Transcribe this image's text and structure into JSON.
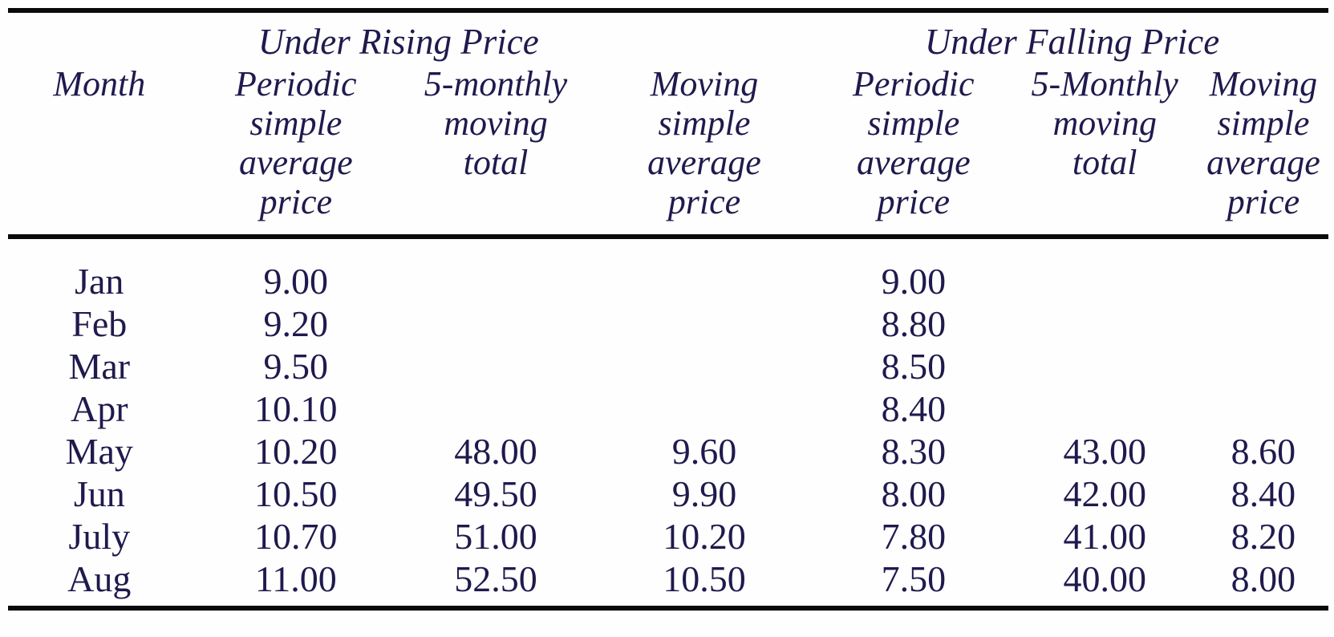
{
  "page": {
    "background_color": "#fefefe",
    "text_color": "#1f1a4d",
    "rule_color": "#0a0a0a"
  },
  "table": {
    "group_headers": {
      "rising": "Under Rising Price",
      "falling": "Under Falling Price"
    },
    "column_headers": [
      "Month",
      "Periodic\nsimple\naverage\nprice",
      "5-monthly\nmoving\ntotal",
      "Moving\nsimple\naverage\nprice",
      "Periodic\nsimple\naverage\nprice",
      "5-Monthly\nmoving\ntotal",
      "Moving\nsimple\naverage\nprice"
    ],
    "rows": [
      [
        "Jan",
        "9.00",
        "",
        "",
        "9.00",
        "",
        ""
      ],
      [
        "Feb",
        "9.20",
        "",
        "",
        "8.80",
        "",
        ""
      ],
      [
        "Mar",
        "9.50",
        "",
        "",
        "8.50",
        "",
        ""
      ],
      [
        "Apr",
        "10.10",
        "",
        "",
        "8.40",
        "",
        ""
      ],
      [
        "May",
        "10.20",
        "48.00",
        "9.60",
        "8.30",
        "43.00",
        "8.60"
      ],
      [
        "Jun",
        "10.50",
        "49.50",
        "9.90",
        "8.00",
        "42.00",
        "8.40"
      ],
      [
        "July",
        "10.70",
        "51.00",
        "10.20",
        "7.80",
        "41.00",
        "8.20"
      ],
      [
        "Aug",
        "11.00",
        "52.50",
        "10.50",
        "7.50",
        "40.00",
        "8.00"
      ]
    ]
  }
}
